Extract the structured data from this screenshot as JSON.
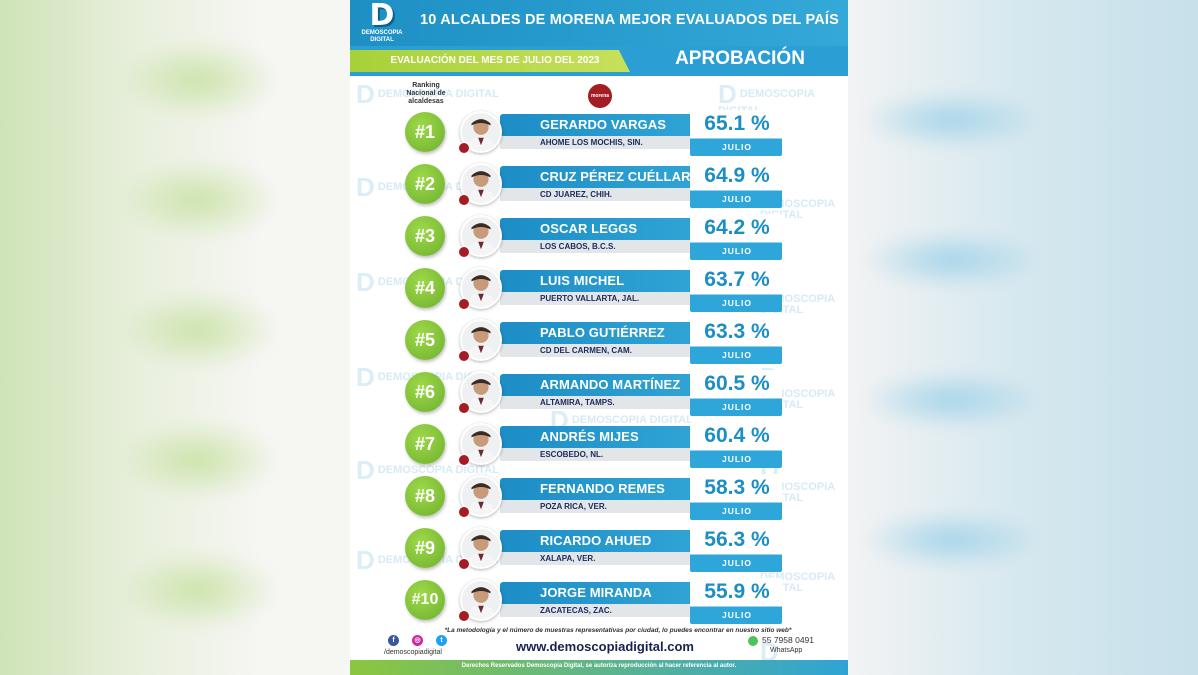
{
  "header": {
    "logo_letter": "D",
    "logo_name": "DEMOSCOPIA DIGITAL",
    "title": "10 ALCALDES DE MORENA MEJOR EVALUADOS DEL PAÍS",
    "subtitle": "EVALUACIÓN DEL MES DE JULIO DEL 2023",
    "section": "APROBACIÓN"
  },
  "ranking_label": "Ranking Nacional de alcaldesas",
  "party_logo": "morena",
  "watermark": "DEMOSCOPIA DIGITAL",
  "month": "JULIO",
  "rows": [
    {
      "rank": "#1",
      "name": "GERARDO VARGAS",
      "city": "AHOME LOS MOCHIS, SIN.",
      "pct": "65.1 %",
      "value": 65.1
    },
    {
      "rank": "#2",
      "name": "CRUZ PÉREZ CUÉLLAR",
      "city": "CD JUAREZ, CHIH.",
      "pct": "64.9 %",
      "value": 64.9
    },
    {
      "rank": "#3",
      "name": "OSCAR LEGGS",
      "city": "LOS CABOS, B.C.S.",
      "pct": "64.2 %",
      "value": 64.2
    },
    {
      "rank": "#4",
      "name": "LUIS MICHEL",
      "city": "PUERTO VALLARTA, JAL.",
      "pct": "63.7 %",
      "value": 63.7
    },
    {
      "rank": "#5",
      "name": "PABLO GUTIÉRREZ",
      "city": "CD DEL CARMEN, CAM.",
      "pct": "63.3 %",
      "value": 63.3
    },
    {
      "rank": "#6",
      "name": "ARMANDO MARTÍNEZ",
      "city": "ALTAMIRA, TAMPS.",
      "pct": "60.5 %",
      "value": 60.5
    },
    {
      "rank": "#7",
      "name": "ANDRÉS MIJES",
      "city": "ESCOBEDO, NL.",
      "pct": "60.4 %",
      "value": 60.4
    },
    {
      "rank": "#8",
      "name": "FERNANDO REMES",
      "city": "POZA RICA, VER.",
      "pct": "58.3 %",
      "value": 58.3
    },
    {
      "rank": "#9",
      "name": "RICARDO AHUED",
      "city": "XALAPA, VER.",
      "pct": "56.3 %",
      "value": 56.3
    },
    {
      "rank": "#10",
      "name": "JORGE MIRANDA",
      "city": "ZACATECAS, ZAC.",
      "pct": "55.9 %",
      "value": 55.9
    }
  ],
  "footer": {
    "note": "*La metodología y el número de muestras representativas por ciudad, lo puedes encontrar en nuestro sitio web*",
    "social_handle": "/demoscopiadigital",
    "website": "www.demoscopiadigital.com",
    "phone": "55 7958 0491",
    "phone_label": "WhatsApp",
    "rights": "Derechos Reservados Demoscopia Digital, se autoriza reproducción al hacer referencia al autor."
  },
  "colors": {
    "blue": "#1c8dc5",
    "green": "#8cc63f",
    "morena_red": "#a41c24"
  },
  "icons": [
    "facebook-icon",
    "instagram-icon",
    "twitter-icon",
    "whatsapp-icon"
  ]
}
